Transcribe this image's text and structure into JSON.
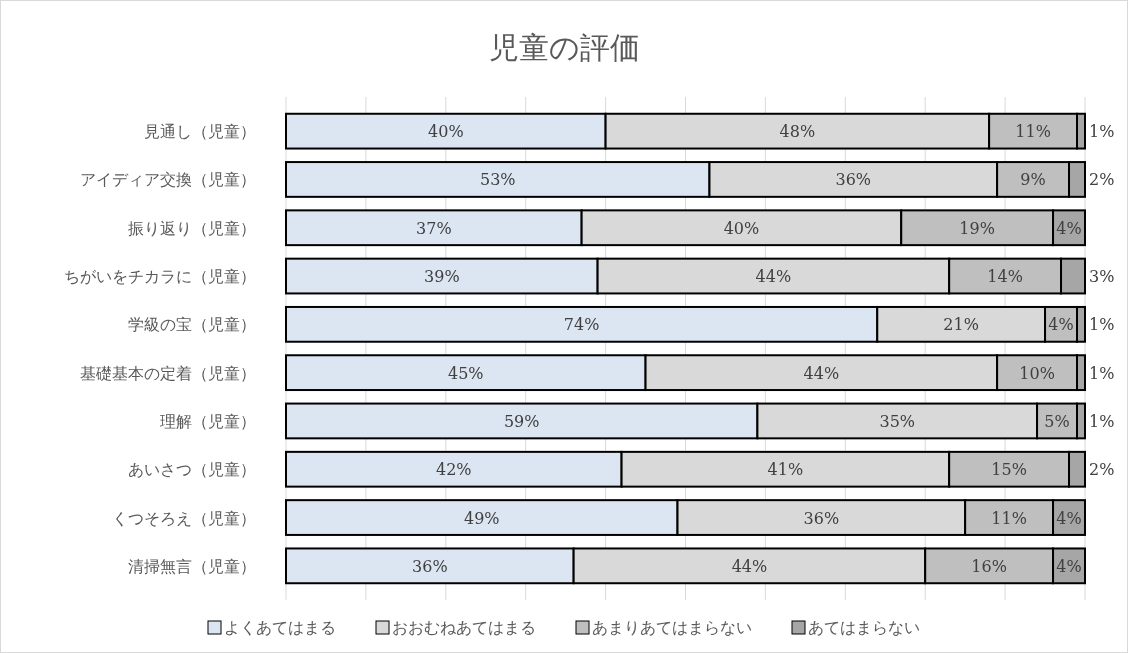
{
  "chart_data": {
    "type": "bar",
    "orientation": "horizontal",
    "stacked": true,
    "title": "児童の評価",
    "categories": [
      "見通し（児童）",
      "アイディア交換（児童）",
      "振り返り（児童）",
      "ちがいをチカラに（児童）",
      "学級の宝（児童）",
      "基礎基本の定着（児童）",
      "理解（児童）",
      "あいさつ（児童）",
      "くつそろえ（児童）",
      "清掃無言（児童）"
    ],
    "series": [
      {
        "name": "よくあてはまる",
        "color": "#dce6f2",
        "values": [
          40,
          53,
          37,
          39,
          74,
          45,
          59,
          42,
          49,
          36
        ],
        "value_labels": [
          "40%",
          "53%",
          "37%",
          "39%",
          "74%",
          "45%",
          "59%",
          "42%",
          "49%",
          "36%"
        ]
      },
      {
        "name": "おおむねあてはまる",
        "color": "#d9d9d9",
        "values": [
          48,
          36,
          40,
          44,
          21,
          44,
          35,
          41,
          36,
          44
        ],
        "value_labels": [
          "48%",
          "36%",
          "40%",
          "44%",
          "21%",
          "44%",
          "35%",
          "41%",
          "36%",
          "44%"
        ]
      },
      {
        "name": "あまりあてはまらない",
        "color": "#bfbfbf",
        "values": [
          11,
          9,
          19,
          14,
          4,
          10,
          5,
          15,
          11,
          16
        ],
        "value_labels": [
          "11%",
          "9%",
          "19%",
          "14%",
          "4%",
          "10%",
          "5%",
          "15%",
          "11%",
          "16%"
        ]
      },
      {
        "name": "あてはまらない",
        "color": "#a6a6a6",
        "values": [
          1,
          2,
          4,
          3,
          1,
          1,
          1,
          2,
          4,
          4
        ],
        "value_labels": [
          "1%",
          "2%",
          "4%",
          "3%",
          "1%",
          "1%",
          "1%",
          "2%",
          "4%",
          "4%"
        ]
      }
    ],
    "xlim": [
      0,
      100
    ],
    "xticks": [
      {
        "value": 0,
        "label": null
      },
      {
        "value": 10,
        "label": null
      },
      {
        "value": 20,
        "label": null
      },
      {
        "value": 30,
        "label": null
      },
      {
        "value": 40,
        "label": null
      },
      {
        "value": 50,
        "label": null
      },
      {
        "value": 60,
        "label": null
      },
      {
        "value": 70,
        "label": null
      },
      {
        "value": 80,
        "label": null
      },
      {
        "value": 90,
        "label": null
      },
      {
        "value": 100,
        "label": null
      }
    ],
    "tick_labels": "y",
    "grid": "x",
    "legend": "bottom"
  }
}
